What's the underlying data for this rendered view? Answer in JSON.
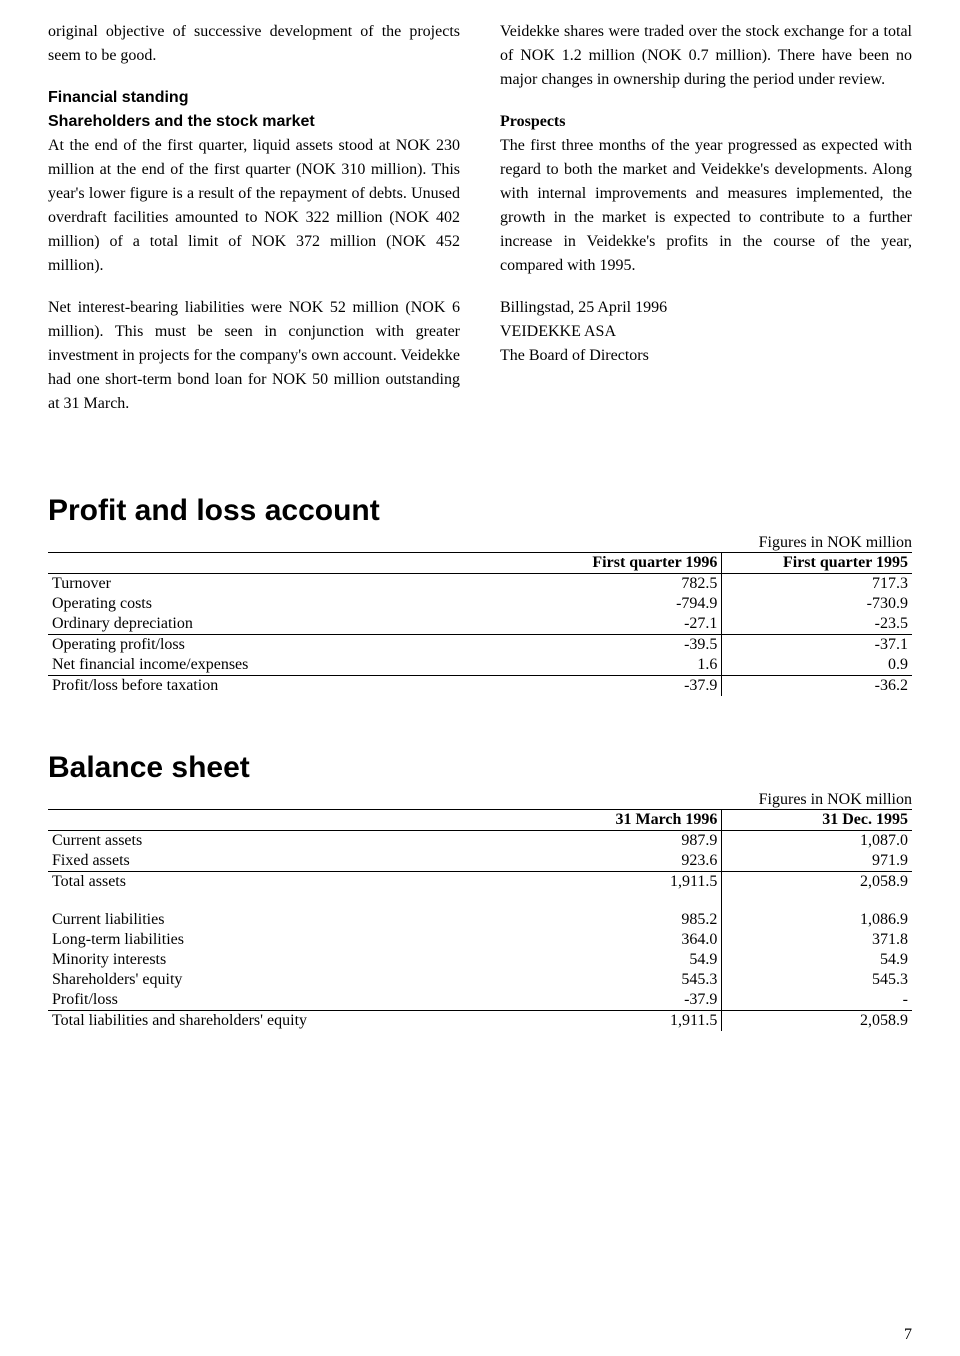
{
  "left_col": {
    "p1": "original objective of successive development of the projects seem to be good.",
    "heading1": "Financial standing",
    "heading2": "Shareholders and the stock market",
    "p2": "At the end of the first quarter, liquid assets stood at NOK 230 million at the end of the first quarter (NOK 310 million). This year's lower figure is a result of the repayment of debts. Unused overdraft facilities amounted to NOK 322 million (NOK 402 million) of a total limit of NOK 372 million (NOK 452 million).",
    "p3": "Net interest-bearing liabilities were NOK 52 million (NOK 6 million). This must be seen in conjunction with greater investment in projects for the company's own account. Veidekke had one short-term bond loan for NOK 50 million outstanding at 31 March."
  },
  "right_col": {
    "p1": "Veidekke shares were traded over the stock exchange for a total of NOK 1.2 million (NOK 0.7 million). There have been no major changes in ownership during the period under review.",
    "heading": "Prospects",
    "p2": "The first three months of the year progressed as expected with regard to both the market and Veidekke's developments. Along with internal improvements and measures implemented, the growth in the market is expected to contribute to a further increase in Veidekke's profits in the course of the year, compared with 1995.",
    "sig1": "Billingstad, 25 April 1996",
    "sig2": "VEIDEKKE ASA",
    "sig3": "The Board of Directors"
  },
  "pl": {
    "title": "Profit and loss account",
    "units": "Figures in NOK million",
    "col1": "First quarter 1996",
    "col2": "First quarter 1995",
    "rows": [
      {
        "label": "Turnover",
        "v1": "782.5",
        "v2": "717.3"
      },
      {
        "label": "Operating costs",
        "v1": "-794.9",
        "v2": "-730.9"
      },
      {
        "label": "Ordinary depreciation",
        "v1": "-27.1",
        "v2": "-23.5",
        "rule": true
      },
      {
        "label": "Operating profit/loss",
        "v1": "-39.5",
        "v2": "-37.1"
      },
      {
        "label": "Net financial income/expenses",
        "v1": "1.6",
        "v2": "0.9",
        "rule": true
      },
      {
        "label": "Profit/loss before taxation",
        "v1": "-37.9",
        "v2": "-36.2"
      }
    ]
  },
  "bs": {
    "title": "Balance sheet",
    "units": "Figures in NOK million",
    "col1": "31 March 1996",
    "col2": "31 Dec. 1995",
    "rows_a": [
      {
        "label": "Current assets",
        "v1": "987.9",
        "v2": "1,087.0"
      },
      {
        "label": "Fixed assets",
        "v1": "923.6",
        "v2": "971.9",
        "rule": true
      },
      {
        "label": "Total assets",
        "v1": "1,911.5",
        "v2": "2,058.9"
      }
    ],
    "rows_b": [
      {
        "label": "Current liabilities",
        "v1": "985.2",
        "v2": "1,086.9"
      },
      {
        "label": "Long-term liabilities",
        "v1": "364.0",
        "v2": "371.8"
      },
      {
        "label": "Minority interests",
        "v1": "54.9",
        "v2": "54.9"
      },
      {
        "label": "Shareholders' equity",
        "v1": "545.3",
        "v2": "545.3"
      },
      {
        "label": "Profit/loss",
        "v1": "-37.9",
        "v2": "-",
        "rule": true
      },
      {
        "label": "Total liabilities and shareholders' equity",
        "v1": "1,911.5",
        "v2": "2,058.9"
      }
    ]
  },
  "page_number": "7"
}
